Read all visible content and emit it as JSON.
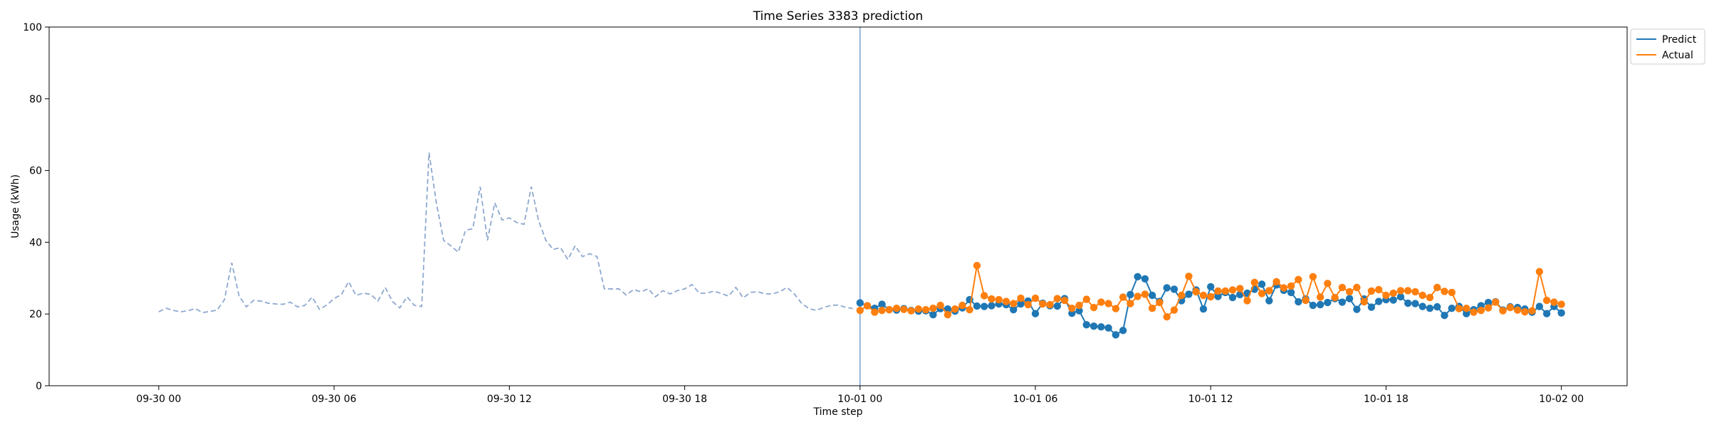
{
  "chart_data": {
    "type": "line",
    "title": "Time Series 3383 prediction",
    "xlabel": "Time step",
    "ylabel": "Usage (kWh)",
    "ylim": [
      0,
      100
    ],
    "yticks": [
      0,
      20,
      40,
      60,
      80,
      100
    ],
    "xlim": [
      "2023-09-29 20:15",
      "2023-10-02 02:15"
    ],
    "xticks": [
      {
        "t": "2023-09-30 00:00",
        "label": "09-30 00"
      },
      {
        "t": "2023-09-30 06:00",
        "label": "09-30 06"
      },
      {
        "t": "2023-09-30 12:00",
        "label": "09-30 12"
      },
      {
        "t": "2023-09-30 18:00",
        "label": "09-30 18"
      },
      {
        "t": "2023-10-01 00:00",
        "label": "10-01 00"
      },
      {
        "t": "2023-10-01 06:00",
        "label": "10-01 06"
      },
      {
        "t": "2023-10-01 12:00",
        "label": "10-01 12"
      },
      {
        "t": "2023-10-01 18:00",
        "label": "10-01 18"
      },
      {
        "t": "2023-10-02 00:00",
        "label": "10-02 00"
      }
    ],
    "grid": false,
    "legend_position": "top-right, outside",
    "split_marker_time": "2023-10-01 00:00",
    "interval_minutes": 15,
    "history": {
      "start": "2023-09-30 00:00",
      "style": "dashed",
      "color": "#8fa8cf",
      "values": [
        20.6,
        21.6,
        21.0,
        20.6,
        20.9,
        21.5,
        20.4,
        20.7,
        21.1,
        24.0,
        34.3,
        25.0,
        22.0,
        23.8,
        23.6,
        23.0,
        22.8,
        22.7,
        23.3,
        22.0,
        22.4,
        24.7,
        21.3,
        22.5,
        24.3,
        25.4,
        29.0,
        25.2,
        25.8,
        25.5,
        23.6,
        27.4,
        23.5,
        21.7,
        24.8,
        22.4,
        22.1,
        65.0,
        51.0,
        40.5,
        39.0,
        37.2,
        43.3,
        43.8,
        55.5,
        40.5,
        51.0,
        46.2,
        46.8,
        45.5,
        45.0,
        55.5,
        46.0,
        40.5,
        38.0,
        38.5,
        35.2,
        39.0,
        36.0,
        36.8,
        36.0,
        27.0,
        27.0,
        27.0,
        25.3,
        26.8,
        26.2,
        27.0,
        24.8,
        26.5,
        25.6,
        26.5,
        27.0,
        28.2,
        25.8,
        25.8,
        26.4,
        25.7,
        25.0,
        27.4,
        24.5,
        26.0,
        26.2,
        25.6,
        25.6,
        26.2,
        27.4,
        25.6,
        23.0,
        21.5,
        21.0,
        21.8,
        22.4,
        22.5,
        21.9,
        21.5
      ]
    },
    "forecast_start": "2023-10-01 00:00",
    "series": [
      {
        "name": "Predict",
        "color": "#1f77b4",
        "values": [
          23.1,
          22.3,
          21.6,
          22.7,
          21.2,
          21.1,
          21.5,
          21.0,
          20.8,
          20.9,
          19.8,
          21.5,
          21.4,
          20.8,
          21.7,
          24.0,
          22.2,
          22.1,
          22.3,
          22.8,
          22.6,
          21.2,
          22.8,
          23.6,
          20.1,
          23.0,
          22.3,
          22.2,
          24.3,
          20.2,
          20.9,
          17.0,
          16.6,
          16.4,
          16.1,
          14.2,
          15.4,
          25.4,
          30.4,
          29.8,
          25.2,
          23.5,
          27.3,
          26.9,
          23.7,
          25.5,
          26.7,
          21.4,
          27.6,
          24.9,
          26.0,
          24.6,
          25.4,
          25.8,
          26.9,
          28.3,
          23.7,
          28.1,
          26.6,
          26.0,
          23.4,
          24.2,
          22.4,
          22.6,
          23.2,
          24.3,
          23.3,
          24.3,
          21.3,
          24.2,
          21.9,
          23.5,
          24.0,
          23.9,
          24.8,
          23.0,
          22.9,
          22.1,
          21.6,
          22.0,
          19.6,
          21.6,
          22.1,
          20.1,
          21.2,
          22.3,
          23.2,
          23.4,
          21.1,
          22.0,
          21.8,
          21.4,
          20.5,
          22.1,
          20.1,
          22.1,
          20.3
        ]
      },
      {
        "name": "Actual",
        "color": "#ff7f0e",
        "values": [
          21.0,
          22.3,
          20.5,
          21.0,
          21.2,
          21.6,
          21.3,
          20.9,
          21.4,
          21.2,
          21.6,
          22.4,
          19.8,
          21.4,
          22.4,
          21.2,
          33.5,
          25.1,
          24.2,
          24.0,
          23.5,
          22.9,
          24.4,
          22.6,
          24.4,
          22.8,
          22.6,
          24.3,
          23.8,
          21.6,
          22.4,
          24.1,
          21.8,
          23.3,
          22.9,
          21.5,
          24.7,
          22.9,
          24.9,
          25.5,
          21.6,
          23.2,
          19.2,
          21.1,
          25.2,
          30.5,
          26.2,
          25.2,
          24.8,
          26.4,
          26.4,
          26.7,
          27.1,
          23.7,
          28.8,
          25.7,
          26.5,
          29.0,
          27.3,
          27.8,
          29.6,
          23.8,
          30.4,
          24.7,
          28.5,
          24.6,
          27.4,
          26.2,
          27.4,
          23.4,
          26.4,
          26.8,
          25.2,
          25.8,
          26.5,
          26.5,
          26.2,
          25.2,
          24.6,
          27.4,
          26.3,
          26.0,
          21.5,
          21.6,
          20.5,
          21.0,
          21.7,
          23.3,
          20.9,
          21.8,
          21.1,
          20.6,
          20.9,
          31.8,
          23.8,
          23.3,
          22.7
        ]
      }
    ]
  }
}
